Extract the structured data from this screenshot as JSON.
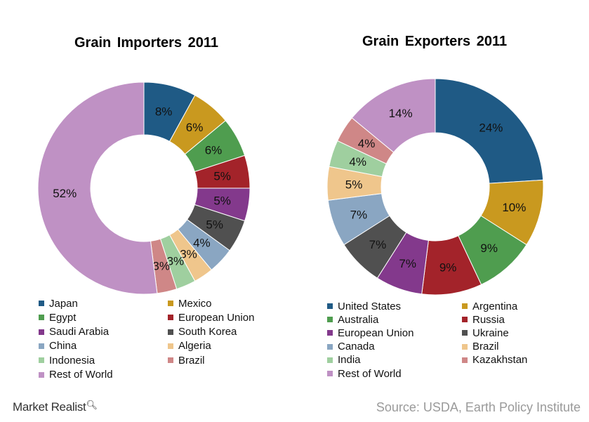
{
  "chart_data": [
    {
      "type": "pie",
      "title": "Grain Importers 2011",
      "categories": [
        "Japan",
        "Mexico",
        "Egypt",
        "European Union",
        "Saudi Arabia",
        "South Korea",
        "China",
        "Algeria",
        "Indonesia",
        "Brazil",
        "Rest of World"
      ],
      "values": [
        8,
        6,
        6,
        5,
        5,
        5,
        4,
        3,
        3,
        3,
        52
      ],
      "value_labels": [
        "8%",
        "6%",
        "6%",
        "5%",
        "5%",
        "5%",
        "4%",
        "3%",
        "3%",
        "3%",
        "52%"
      ],
      "colors": [
        "#1f5a85",
        "#c9991f",
        "#4f9d4f",
        "#a3232a",
        "#83398c",
        "#505050",
        "#8aa6c2",
        "#efc68c",
        "#9fcf9f",
        "#cf8787",
        "#bf91c4"
      ],
      "donut": true,
      "legend_position": "bottom"
    },
    {
      "type": "pie",
      "title": "Grain Exporters 2011",
      "categories": [
        "United States",
        "Argentina",
        "Australia",
        "Russia",
        "European Union",
        "Ukraine",
        "Canada",
        "Brazil",
        "India",
        "Kazakhstan",
        "Rest of World"
      ],
      "values": [
        24,
        10,
        9,
        9,
        7,
        7,
        7,
        5,
        4,
        4,
        14
      ],
      "value_labels": [
        "24%",
        "10%",
        "9%",
        "9%",
        "7%",
        "7%",
        "7%",
        "5%",
        "4%",
        "4%",
        "14%"
      ],
      "colors": [
        "#1f5a85",
        "#c9991f",
        "#4f9d4f",
        "#a3232a",
        "#83398c",
        "#505050",
        "#8aa6c2",
        "#efc68c",
        "#9fcf9f",
        "#cf8787",
        "#bf91c4"
      ],
      "donut": true,
      "legend_position": "bottom"
    }
  ],
  "footer": {
    "brand": "Market Realist",
    "brand_icon": "magnifier-icon",
    "source": "Source: USDA, Earth Policy Institute"
  }
}
